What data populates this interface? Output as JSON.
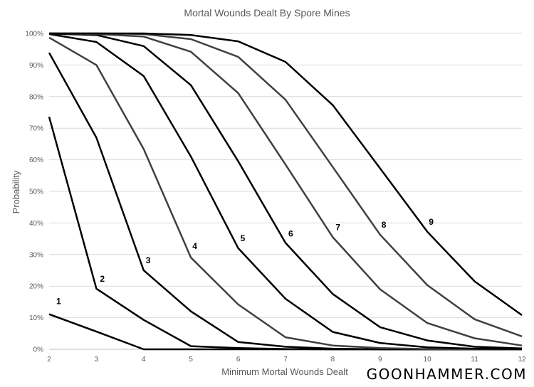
{
  "brand": "GOONHAMMER.COM",
  "chart_data": {
    "type": "line",
    "title": "Mortal Wounds Dealt By Spore Mines",
    "xlabel": "Minimum Mortal Wounds Dealt",
    "ylabel": "Probability",
    "x": [
      2,
      3,
      4,
      5,
      6,
      7,
      8,
      9,
      10,
      11,
      12
    ],
    "xlim": [
      2,
      12
    ],
    "ylim": [
      0,
      100
    ],
    "y_tick_format": "percent",
    "grid": true,
    "legend": "none",
    "colors": {
      "dark": "#000000",
      "gray": "#404040",
      "grid": "#d9d9d9",
      "text": "#595959"
    },
    "series": [
      {
        "name": "1",
        "values": [
          11.1,
          5.6,
          0.0,
          0.0,
          0.0,
          0.0,
          0.0,
          0.0,
          0.0,
          0.0,
          0.0
        ]
      },
      {
        "name": "2",
        "values": [
          73.6,
          19.2,
          9.3,
          1.0,
          0.4,
          0.1,
          0.0,
          0.0,
          0.0,
          0.0,
          0.0
        ]
      },
      {
        "name": "3",
        "values": [
          93.9,
          67.0,
          25.0,
          12.0,
          2.3,
          0.8,
          0.2,
          0.0,
          0.0,
          0.0,
          0.0
        ]
      },
      {
        "name": "4",
        "values": [
          98.7,
          90.0,
          63.4,
          29.0,
          14.2,
          3.8,
          1.2,
          0.4,
          0.1,
          0.0,
          0.0
        ]
      },
      {
        "name": "5",
        "values": [
          99.8,
          97.3,
          86.5,
          61.0,
          32.0,
          16.0,
          5.5,
          2.0,
          0.6,
          0.2,
          0.1
        ]
      },
      {
        "name": "6",
        "values": [
          99.9,
          99.5,
          96.0,
          83.6,
          59.5,
          33.7,
          17.5,
          7.0,
          2.8,
          0.8,
          0.3
        ]
      },
      {
        "name": "7",
        "values": [
          100,
          99.8,
          99.0,
          94.2,
          81.1,
          58.5,
          35.5,
          19.0,
          8.3,
          3.5,
          1.2
        ]
      },
      {
        "name": "8",
        "values": [
          100,
          100,
          99.8,
          98.2,
          92.6,
          79.0,
          57.7,
          36.3,
          20.3,
          9.5,
          4.1
        ]
      },
      {
        "name": "9",
        "values": [
          100,
          100,
          100,
          99.5,
          97.5,
          91.0,
          77.3,
          57.3,
          37.2,
          21.5,
          10.8
        ]
      }
    ]
  }
}
